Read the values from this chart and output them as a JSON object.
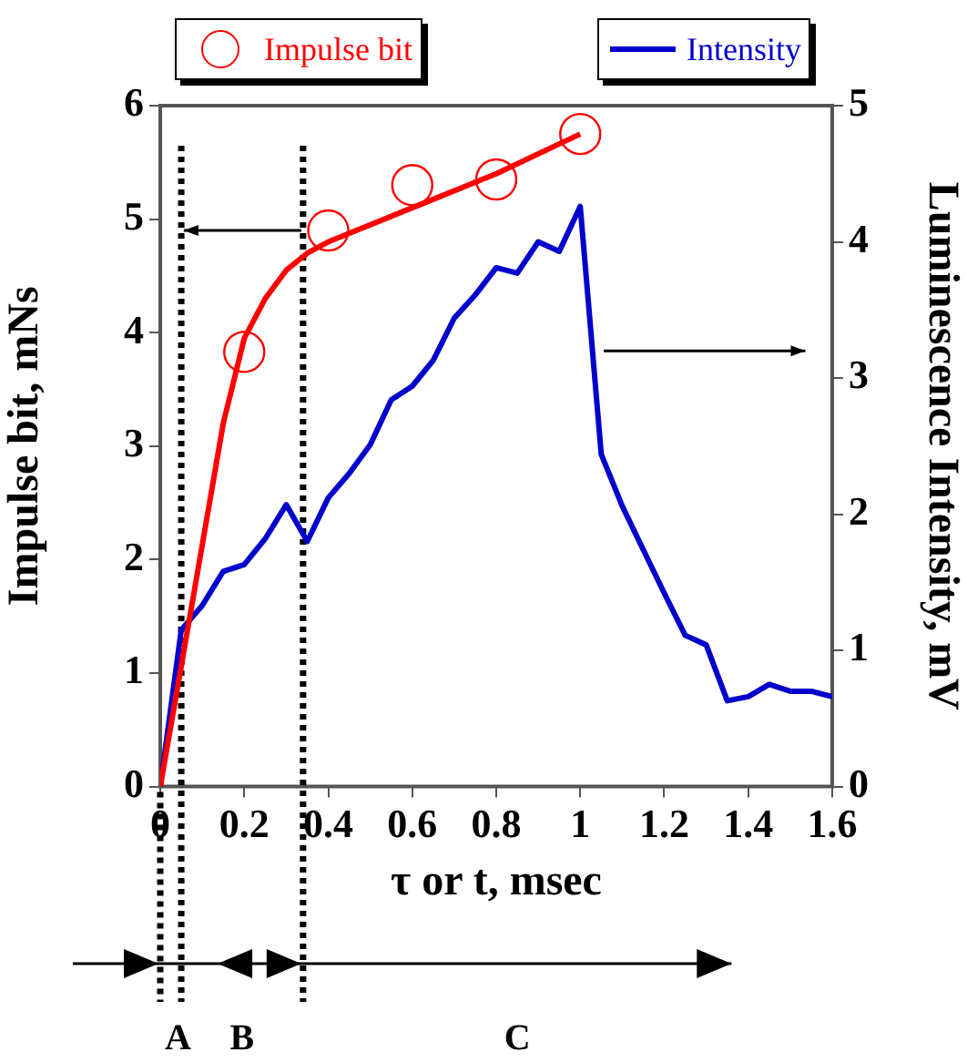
{
  "chart_data": {
    "type": "line",
    "xlabel": "τ or t, msec",
    "ylabel": "Impulse bit, mNs",
    "y2label": "Luminescence Intensity, mV",
    "xlim": [
      0,
      1.6
    ],
    "xticks": [
      0,
      0.2,
      0.4,
      0.6,
      0.8,
      1,
      1.2,
      1.4,
      1.6
    ],
    "ylim": [
      0,
      6
    ],
    "yticks": [
      0,
      1,
      2,
      3,
      4,
      5,
      6
    ],
    "y2lim": [
      0,
      5
    ],
    "y2ticks": [
      0,
      1,
      2,
      3,
      4,
      5
    ],
    "series": [
      {
        "name": "Impulse bit",
        "type": "scatter",
        "marker": "circle",
        "color": "#ff0000",
        "x": [
          0.2,
          0.4,
          0.6,
          0.8,
          1.0
        ],
        "values": [
          3.83,
          4.9,
          5.3,
          5.35,
          5.75
        ]
      },
      {
        "color": "#ff0000",
        "x": [
          0,
          0.05,
          0.1,
          0.15,
          0.2,
          0.25,
          0.3,
          0.35,
          0.4,
          0.6,
          0.8,
          1.0
        ],
        "values": [
          0,
          1.06,
          2.13,
          3.2,
          3.95,
          4.3,
          4.55,
          4.7,
          4.8,
          5.1,
          5.4,
          5.75
        ]
      },
      {
        "name": "Intensity",
        "axis": "y2",
        "color": "#0000cc",
        "x": [
          0,
          0.05,
          0.1,
          0.15,
          0.2,
          0.25,
          0.3,
          0.35,
          0.4,
          0.45,
          0.5,
          0.55,
          0.6,
          0.65,
          0.7,
          0.75,
          0.8,
          0.85,
          0.9,
          0.95,
          1.0,
          1.05,
          1.1,
          1.15,
          1.2,
          1.25,
          1.3,
          1.35,
          1.4,
          1.45,
          1.5,
          1.55,
          1.6
        ],
        "values": [
          0,
          1.15,
          1.33,
          1.58,
          1.63,
          1.82,
          2.07,
          1.8,
          2.12,
          2.3,
          2.51,
          2.84,
          2.94,
          3.13,
          3.44,
          3.61,
          3.81,
          3.77,
          4.0,
          3.93,
          4.26,
          2.44,
          2.06,
          1.74,
          1.42,
          1.11,
          1.04,
          0.63,
          0.66,
          0.75,
          0.7,
          0.7,
          0.66
        ]
      }
    ],
    "ref_lines": [
      {
        "axis": "x",
        "value": 0.05,
        "line_style": "dotted",
        "color": "#000000"
      },
      {
        "axis": "x",
        "value": 0.34,
        "line_style": "dotted",
        "color": "#000000"
      }
    ],
    "annotations": [
      "A",
      "B",
      "C"
    ],
    "legend": "top",
    "grid": false
  }
}
